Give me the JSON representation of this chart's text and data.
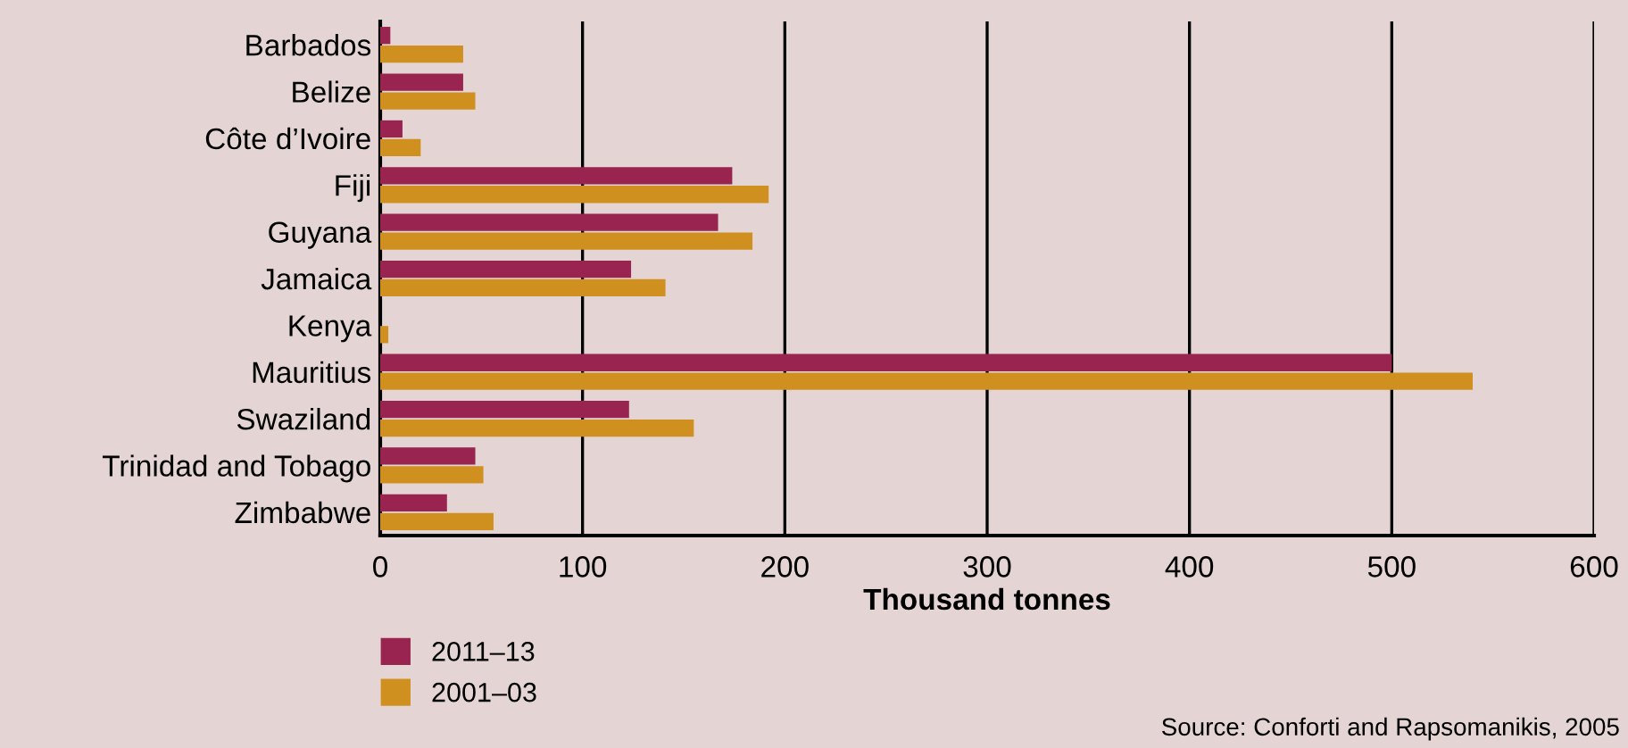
{
  "chart_data": {
    "type": "bar",
    "orientation": "horizontal",
    "xlabel": "Thousand tonnes",
    "categories": [
      "Barbados",
      "Belize",
      "Côte d’Ivoire",
      "Fiji",
      "Guyana",
      "Jamaica",
      "Kenya",
      "Mauritius",
      "Swaziland",
      "Trinidad and Tobago",
      "Zimbabwe"
    ],
    "series": [
      {
        "name": "2011–13",
        "color": "#98244f",
        "values": [
          5,
          41,
          11,
          174,
          167,
          124,
          0,
          500,
          123,
          47,
          33
        ]
      },
      {
        "name": "2001–03",
        "color": "#d09020",
        "values": [
          41,
          47,
          20,
          192,
          184,
          141,
          4,
          540,
          155,
          51,
          56
        ]
      }
    ],
    "xlim": [
      0,
      600
    ],
    "xticks": [
      0,
      100,
      200,
      300,
      400,
      500,
      600
    ],
    "grid": "x",
    "legend": "bottom left",
    "annotations": [
      "Source: Conforti and Rapsomanikis, 2005"
    ]
  }
}
